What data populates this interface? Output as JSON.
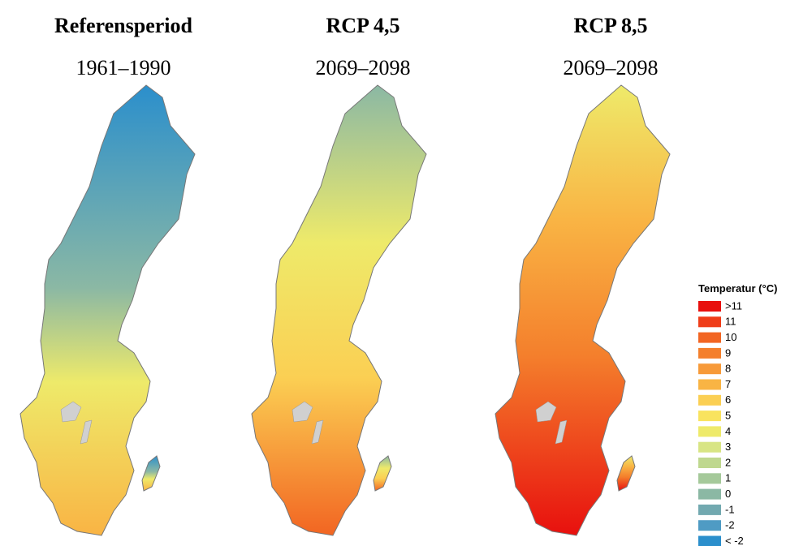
{
  "panels": [
    {
      "title": "Referensperiod",
      "period": "1961–1990"
    },
    {
      "title": "RCP 4,5",
      "period": "2069–2098"
    },
    {
      "title": "RCP 8,5",
      "period": "2069–2098"
    }
  ],
  "legend": {
    "title": "Temperatur (°C)",
    "items": [
      {
        "label": ">11",
        "color": "#e8100e"
      },
      {
        "label": "11",
        "color": "#ef3d19"
      },
      {
        "label": "10",
        "color": "#f26522"
      },
      {
        "label": "9",
        "color": "#f47f2c"
      },
      {
        "label": "8",
        "color": "#f79a39"
      },
      {
        "label": "7",
        "color": "#f9b444"
      },
      {
        "label": "6",
        "color": "#fbcf53"
      },
      {
        "label": "5",
        "color": "#f9e35e"
      },
      {
        "label": "4",
        "color": "#eeea6a"
      },
      {
        "label": "3",
        "color": "#d8e584"
      },
      {
        "label": "2",
        "color": "#bfd88f"
      },
      {
        "label": "1",
        "color": "#a5c99a"
      },
      {
        "label": "0",
        "color": "#8bb8a4"
      },
      {
        "label": "-1",
        "color": "#72a9b0"
      },
      {
        "label": "-2",
        "color": "#4f9bc4"
      },
      {
        "label": "< -2",
        "color": "#2b8fcc"
      }
    ]
  }
}
